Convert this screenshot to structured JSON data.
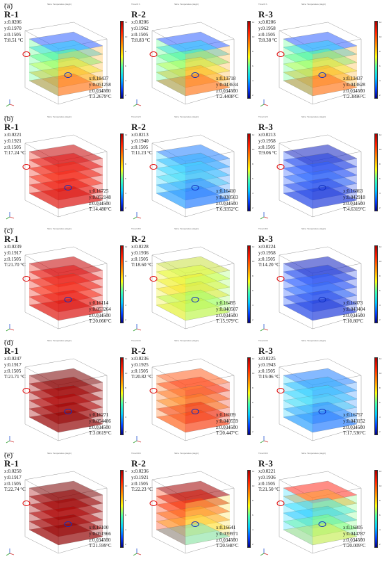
{
  "rows": [
    {
      "label": "(a)",
      "panels": [
        {
          "name": "R-1",
          "time": "Time=6 h",
          "title": "Slice: Temperature (degC)",
          "cmap": "mix",
          "hot": [
            "x:0.0206",
            "y:0.1970",
            "z:0.1505",
            "T:8.51 °C"
          ],
          "cold": [
            "x:0.18437",
            "y:0.051258",
            "z:0.034500",
            "T:3.2679°C"
          ]
        },
        {
          "name": "R-2",
          "time": "Time=6 h",
          "title": "Slice: Temperature (degC)",
          "cmap": "mix",
          "hot": [
            "x:0.0206",
            "y:0.1962",
            "z:0.1505",
            "T:8.83 °C"
          ],
          "cold": [
            "x:0.13718",
            "y:0.043634",
            "z:0.034500",
            "T:2.4408°C"
          ]
        },
        {
          "name": "R-3",
          "time": "Time=6 h",
          "title": "Slice: Temperature (degC)",
          "cmap": "mix",
          "hot": [
            "x:0.0206",
            "y:0.1958",
            "z:0.1505",
            "T:8.38 °C"
          ],
          "cold": [
            "x:0.13437",
            "y:0.043628",
            "z:0.034500",
            "T:2.3896°C"
          ]
        }
      ]
    },
    {
      "label": "(b)",
      "panels": [
        {
          "name": "R-1",
          "time": "Time=12 h",
          "title": "Slice: Temperature (degC)",
          "cmap": "red",
          "hot": [
            "x:0.0221",
            "y:0.1921",
            "z:0.1505",
            "T:17.24 °C"
          ],
          "cold": [
            "x:0.16725",
            "y:0.052148",
            "z:0.034500",
            "T:14.480°C"
          ]
        },
        {
          "name": "R-2",
          "time": "Time=12 h",
          "title": "Slice: Temperature (degC)",
          "cmap": "cyan",
          "hot": [
            "x:0.0213",
            "y:0.1940",
            "z:0.1505",
            "T:11.23 °C"
          ],
          "cold": [
            "x:0.16410",
            "y:0.038503",
            "z:0.034500",
            "T:6.9352°C"
          ]
        },
        {
          "name": "R-3",
          "time": "Time=12 h",
          "title": "Slice: Temperature (degC)",
          "cmap": "blue",
          "hot": [
            "x:0.0213",
            "y:0.1958",
            "z:0.1505",
            "T:9.06 °C"
          ],
          "cold": [
            "x:0.16863",
            "y:0.042918",
            "z:0.034500",
            "T:4.6319°C"
          ]
        }
      ]
    },
    {
      "label": "(c)",
      "panels": [
        {
          "name": "R-1",
          "time": "Time=18 h",
          "title": "Slice: Temperature (degC)",
          "cmap": "red",
          "hot": [
            "x:0.0239",
            "y:0.1917",
            "z:0.1505",
            "T:21.70 °C"
          ],
          "cold": [
            "x:0.16114",
            "y:0.053264",
            "z:0.034500",
            "T:20.066°C"
          ]
        },
        {
          "name": "R-2",
          "time": "Time=18 h",
          "title": "Slice: Temperature (degC)",
          "cmap": "yellow",
          "hot": [
            "x:0.0228",
            "y:0.1936",
            "z:0.1505",
            "T:18.60 °C"
          ],
          "cold": [
            "x:0.16495",
            "y:0.040507",
            "z:0.034500",
            "T:15.979°C"
          ]
        },
        {
          "name": "R-3",
          "time": "Time=18 h",
          "title": "Slice: Temperature (degC)",
          "cmap": "blue",
          "hot": [
            "x:0.0224",
            "y:0.1958",
            "z:0.1505",
            "T:14.20 °C"
          ],
          "cold": [
            "x:0.16873",
            "y:0.043404",
            "z:0.034500",
            "T:10.80°C"
          ]
        }
      ]
    },
    {
      "label": "(d)",
      "panels": [
        {
          "name": "R-1",
          "time": "Time=24 h",
          "title": "Slice: Temperature (degC)",
          "cmap": "darkred",
          "hot": [
            "x:0.0247",
            "y:0.1917",
            "z:0.1505",
            "T:21.71 °C"
          ],
          "cold": [
            "x:0.16271",
            "y:0.054486",
            "z:0.034500",
            "T:3.0619°C"
          ]
        },
        {
          "name": "R-2",
          "time": "Time=24 h",
          "title": "Slice: Temperature (degC)",
          "cmap": "orange",
          "hot": [
            "x:0.0236",
            "y:0.1925",
            "z:0.1505",
            "T:20.82 °C"
          ],
          "cold": [
            "x:0.16939",
            "y:0.040559",
            "z:0.034500",
            "T:20.447°C"
          ]
        },
        {
          "name": "R-3",
          "time": "Time=24 h",
          "title": "Slice: Temperature (degC)",
          "cmap": "cyan",
          "hot": [
            "x:0.0225",
            "y:0.1943",
            "z:0.1505",
            "T:19.06 °C"
          ],
          "cold": [
            "x:0.16757",
            "y:0.043152",
            "z:0.034500",
            "T:17.536°C"
          ]
        }
      ]
    },
    {
      "label": "(e)",
      "panels": [
        {
          "name": "R-1",
          "time": "Time=30 h",
          "title": "Slice: Temperature (degC)",
          "cmap": "darkred",
          "hot": [
            "x:0.0250",
            "y:0.1917",
            "z:0.1505",
            "T:22.74 °C"
          ],
          "cold": [
            "x:0.17100",
            "y:0.051966",
            "z:0.034500",
            "T:21.599°C"
          ]
        },
        {
          "name": "R-2",
          "time": "Time=30 h",
          "title": "Slice: Temperature (degC)",
          "cmap": "redyellow",
          "hot": [
            "x:0.0236",
            "y:0.1921",
            "z:0.1505",
            "T:22.23 °C"
          ],
          "cold": [
            "x:0.16641",
            "y:0.039971",
            "z:0.034500",
            "T:20.940°C"
          ]
        },
        {
          "name": "R-3",
          "time": "Time=30 h",
          "title": "Slice: Temperature (degC)",
          "cmap": "mixwarm",
          "hot": [
            "x:0.0221",
            "y:0.1936",
            "z:0.1505",
            "T:21.50 °C"
          ],
          "cold": [
            "x:0.16805",
            "y:0.044787",
            "z:0.034500",
            "T:20.009°C"
          ]
        }
      ]
    }
  ],
  "colorbar_ticks": [
    "12",
    "10",
    "8",
    "6",
    "4",
    "2"
  ]
}
